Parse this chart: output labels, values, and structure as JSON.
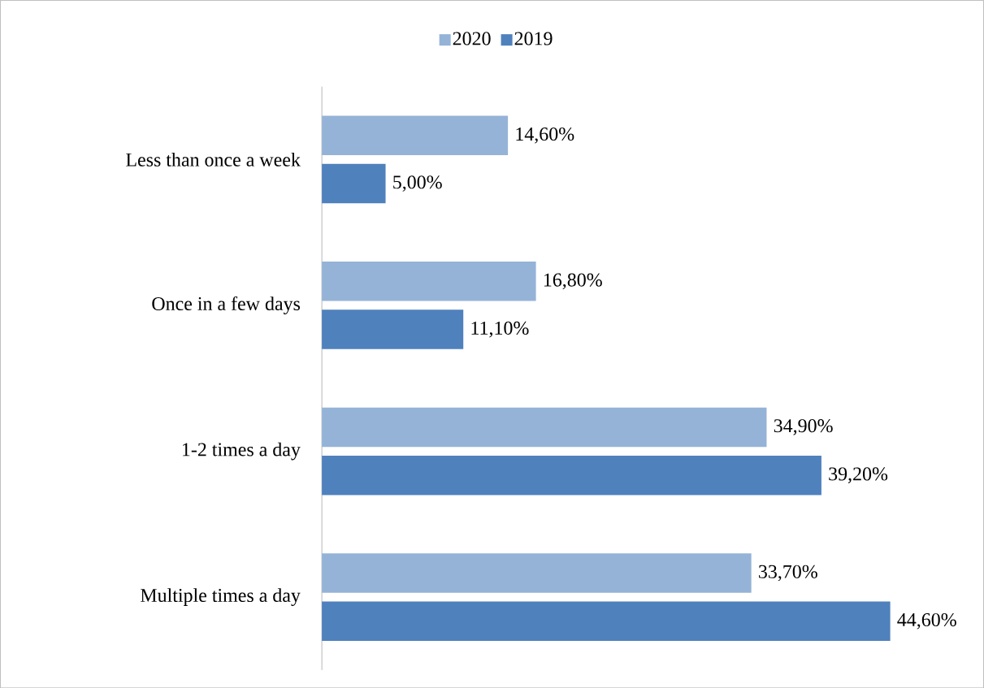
{
  "chart_data": {
    "type": "bar",
    "orientation": "horizontal",
    "categories": [
      "Less than once a week",
      "Once in a few days",
      "1-2 times a day",
      "Multiple times a day"
    ],
    "series": [
      {
        "name": "2020",
        "color": "#95b3d7",
        "values": [
          14.6,
          16.8,
          34.9,
          33.7
        ],
        "value_labels": [
          "14,60%",
          "16,80%",
          "34,90%",
          "33,70%"
        ]
      },
      {
        "name": "2019",
        "color": "#4f81bd",
        "values": [
          5.0,
          11.1,
          39.2,
          44.6
        ],
        "value_labels": [
          "5,00%",
          "11,10%",
          "39,20%",
          "44,60%"
        ]
      }
    ],
    "legend": "top"
  }
}
